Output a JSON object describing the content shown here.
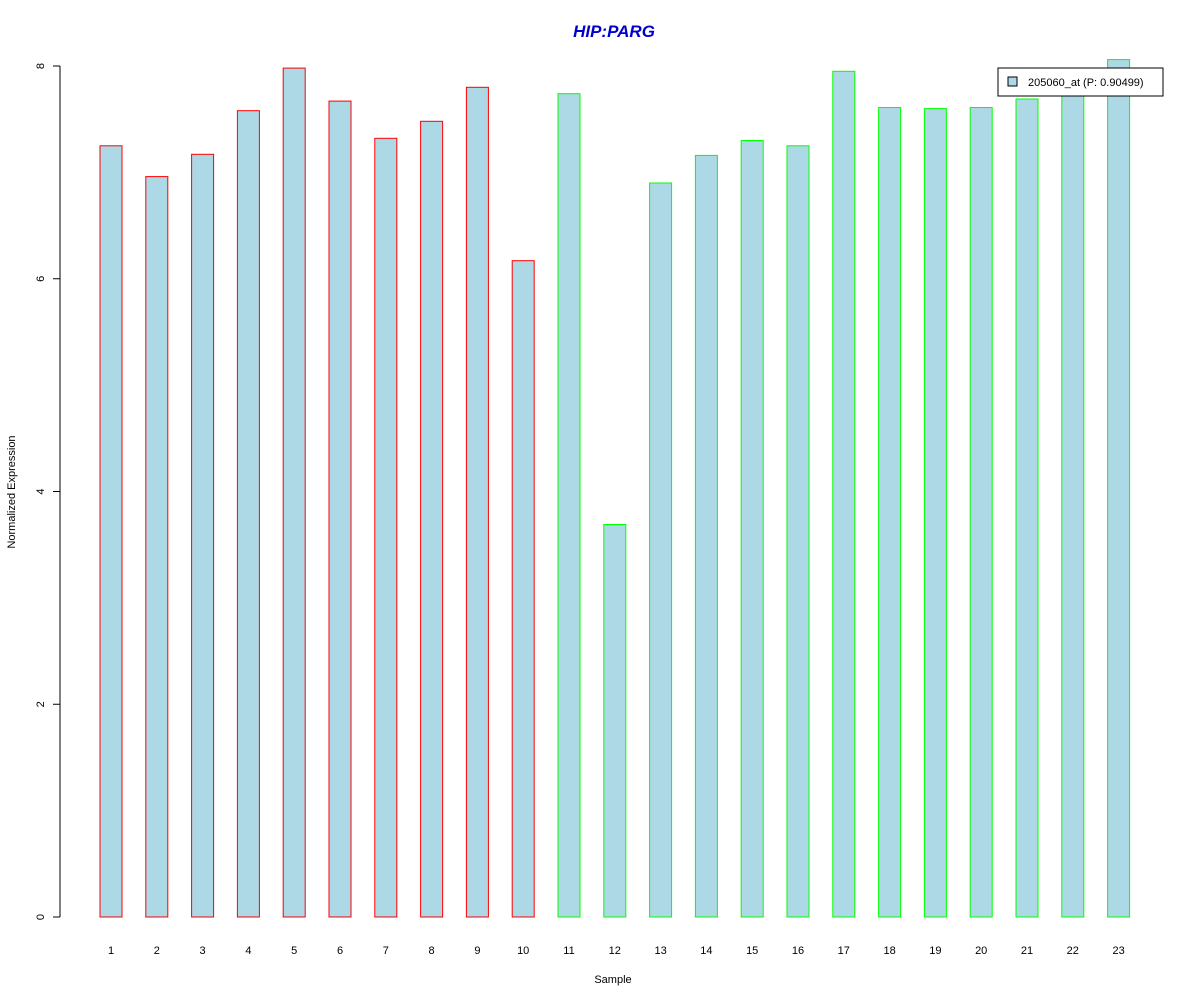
{
  "chart_data": {
    "type": "bar",
    "title": "HIP:PARG",
    "xlabel": "Sample",
    "ylabel": "Normalized Expression",
    "categories": [
      "1",
      "2",
      "3",
      "4",
      "5",
      "6",
      "7",
      "8",
      "9",
      "10",
      "11",
      "12",
      "13",
      "14",
      "15",
      "16",
      "17",
      "18",
      "19",
      "20",
      "21",
      "22",
      "23"
    ],
    "series": [
      {
        "name": "205060_at (P: 0.90499)",
        "values": [
          7.25,
          6.96,
          7.17,
          7.58,
          7.98,
          7.67,
          7.32,
          7.48,
          7.8,
          6.17,
          7.74,
          3.69,
          6.9,
          7.16,
          7.3,
          7.25,
          7.95,
          7.61,
          7.6,
          7.61,
          7.69,
          7.78,
          8.06
        ]
      }
    ],
    "bar_border_colors": [
      "#ff0000",
      "#ff0000",
      "#ff0000",
      "#ff0000",
      "#ff0000",
      "#ff0000",
      "#ff0000",
      "#ff0000",
      "#ff0000",
      "#ff0000",
      "#00ff00",
      "#00ff00",
      "#00ff00",
      "#00ff00",
      "#00ff00",
      "#00ff00",
      "#00ff00",
      "#00ff00",
      "#00ff00",
      "#00ff00",
      "#00ff00",
      "#00ff00",
      "#00ff00"
    ],
    "bar_fill_color": "#add8e6",
    "title_color": "#0000cc",
    "ylim": [
      0,
      8
    ],
    "yticks": [
      0,
      2,
      4,
      6,
      8
    ],
    "legend_position": "top-right",
    "grid": false
  }
}
